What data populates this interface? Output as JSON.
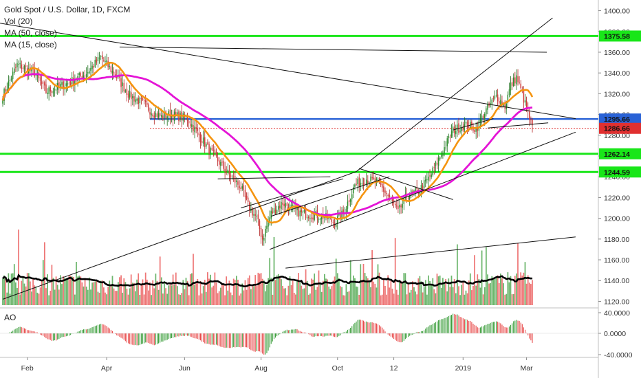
{
  "legend": {
    "title": "Gold Spot / U.S. Dollar, 1D, FXCM",
    "vol": "Vol (20)",
    "ma50": "MA (50, close)",
    "ma15": "MA (15, close)"
  },
  "ao": {
    "label": "AO"
  },
  "colors": {
    "up": "#3c9e3c",
    "down": "#e84a4a",
    "ma50": "#e414d6",
    "ma15": "#f5940f",
    "green_level": "#19e619",
    "blue_level": "#2962d6",
    "red_dotted": "#e03030",
    "trend": "#111111",
    "axis_bg": "#ffffff"
  },
  "chart_data": {
    "type": "candlestick",
    "symbol": "Gold Spot / U.S. Dollar",
    "interval": "1D",
    "source": "FXCM",
    "price_axis": {
      "ticks": [
        "1400.00",
        "1380.00",
        "1360.00",
        "1340.00",
        "1320.00",
        "1300.00",
        "1280.00",
        "1260.00",
        "1240.00",
        "1220.00",
        "1200.00",
        "1180.00",
        "1160.00",
        "1140.00",
        "1120.00"
      ],
      "range": [
        1115,
        1405
      ]
    },
    "time_axis": {
      "labels": [
        "Feb",
        "Apr",
        "Jun",
        "Aug",
        "Oct",
        "12",
        "2019",
        "Mar"
      ]
    },
    "levels": [
      {
        "value": 1375.58,
        "label": "1375.58",
        "kind": "green"
      },
      {
        "value": 1262.14,
        "label": "1262.14",
        "kind": "green"
      },
      {
        "value": 1244.59,
        "label": "1244.59",
        "kind": "green"
      },
      {
        "value": 1295.66,
        "label": "1295.66",
        "kind": "blue"
      },
      {
        "value": 1286.66,
        "label": "1286.66",
        "kind": "current"
      }
    ],
    "series": [
      {
        "name": "MA (50, close)",
        "role": "ma50"
      },
      {
        "name": "MA (15, close)",
        "role": "ma15"
      },
      {
        "name": "Vol (20)",
        "role": "volume"
      }
    ],
    "anchors": [
      [
        0,
        1318
      ],
      [
        10,
        1348
      ],
      [
        22,
        1340
      ],
      [
        30,
        1322
      ],
      [
        45,
        1330
      ],
      [
        58,
        1340
      ],
      [
        68,
        1355
      ],
      [
        78,
        1338
      ],
      [
        88,
        1318
      ],
      [
        96,
        1312
      ],
      [
        104,
        1302
      ],
      [
        110,
        1298
      ],
      [
        116,
        1300
      ],
      [
        128,
        1296
      ],
      [
        142,
        1268
      ],
      [
        155,
        1245
      ],
      [
        165,
        1230
      ],
      [
        170,
        1212
      ],
      [
        176,
        1200
      ],
      [
        180,
        1180
      ],
      [
        186,
        1205
      ],
      [
        194,
        1215
      ],
      [
        206,
        1205
      ],
      [
        222,
        1202
      ],
      [
        230,
        1196
      ],
      [
        236,
        1205
      ],
      [
        244,
        1232
      ],
      [
        252,
        1238
      ],
      [
        260,
        1234
      ],
      [
        268,
        1220
      ],
      [
        274,
        1206
      ],
      [
        280,
        1222
      ],
      [
        288,
        1226
      ],
      [
        296,
        1240
      ],
      [
        304,
        1262
      ],
      [
        312,
        1285
      ],
      [
        322,
        1290
      ],
      [
        328,
        1286
      ],
      [
        334,
        1302
      ],
      [
        342,
        1318
      ],
      [
        348,
        1308
      ],
      [
        352,
        1328
      ],
      [
        356,
        1336
      ],
      [
        360,
        1320
      ],
      [
        364,
        1300
      ],
      [
        367,
        1287
      ]
    ],
    "ao_axis": {
      "ticks": [
        "40.0000",
        "0.0000",
        "-40.0000"
      ]
    }
  }
}
